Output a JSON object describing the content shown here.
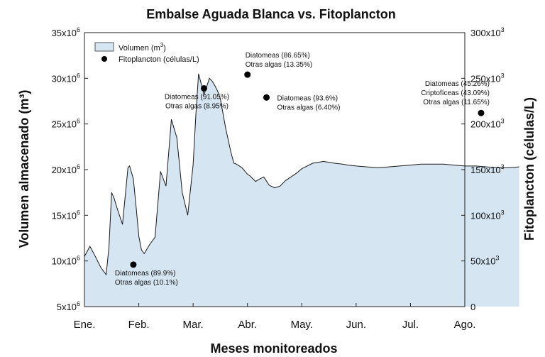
{
  "chart_data": {
    "type": "area",
    "title": "Embalse Aguada Blanca vs. Fitoplancton",
    "xlabel": "Meses monitoreados",
    "ylabel_left": "Volumen almacenado (m³)",
    "ylabel_right": "Fitoplancton (células/L)",
    "x_categories": [
      "Ene.",
      "Feb.",
      "Mar.",
      "Abr.",
      "May.",
      "Jun.",
      "Jul.",
      "Ago."
    ],
    "y_left": {
      "min": 5000000,
      "max": 35000000,
      "ticks": [
        5,
        10,
        15,
        20,
        25,
        30,
        35
      ],
      "tick_suffix": "x10",
      "tick_exp": "6"
    },
    "y_right": {
      "min": 0,
      "max": 300000,
      "ticks": [
        0,
        50,
        100,
        150,
        200,
        250,
        300
      ],
      "tick_suffix": "x10",
      "tick_exp": "3"
    },
    "legend": {
      "placement": "top-left",
      "volume_label": "Volumen (m",
      "volume_exp": "3",
      "volume_close": ")",
      "phyto_label": "Fitoplancton (células/L)"
    },
    "colors": {
      "area_fill": "#d5e5f2",
      "line": "#1a1a1a",
      "point": "#000000"
    },
    "volume_series": {
      "name": "Volumen (m3)",
      "x": [
        0,
        0.1,
        0.2,
        0.3,
        0.4,
        0.45,
        0.5,
        0.55,
        0.6,
        0.7,
        0.8,
        0.83,
        0.9,
        0.95,
        1.0,
        1.05,
        1.1,
        1.2,
        1.3,
        1.4,
        1.5,
        1.6,
        1.7,
        1.8,
        1.9,
        2.0,
        2.05,
        2.1,
        2.2,
        2.3,
        2.35,
        2.4,
        2.45,
        2.5,
        2.6,
        2.7,
        2.75,
        2.8,
        2.9,
        3.0,
        3.05,
        3.1,
        3.15,
        3.2,
        3.3,
        3.4,
        3.5,
        3.6,
        3.7,
        3.8,
        3.9,
        4.0,
        4.2,
        4.4,
        4.6,
        4.75,
        4.85,
        5.0,
        5.2,
        5.4,
        5.6,
        5.8,
        6.0,
        6.2,
        6.4,
        6.6,
        6.8,
        7.0,
        7.2,
        7.4,
        7.6,
        7.8,
        8.0
      ],
      "y": [
        10.5,
        11.6,
        10.5,
        9.3,
        8.5,
        11.5,
        17.5,
        16.8,
        15.8,
        14.0,
        20.2,
        20.4,
        19.0,
        16.0,
        12.7,
        11.2,
        10.8,
        11.8,
        12.6,
        19.8,
        18.2,
        25.5,
        23.5,
        17.5,
        15.0,
        20.5,
        26.0,
        30.5,
        28.2,
        30.0,
        29.7,
        29.2,
        28.6,
        27.8,
        24.5,
        21.8,
        20.7,
        20.6,
        20.2,
        19.5,
        19.3,
        19.0,
        18.7,
        18.9,
        19.2,
        18.3,
        18.0,
        18.2,
        18.8,
        19.2,
        19.6,
        20.1,
        20.7,
        20.9,
        20.7,
        20.6,
        20.5,
        20.4,
        20.3,
        20.2,
        20.3,
        20.4,
        20.5,
        20.6,
        20.6,
        20.6,
        20.5,
        20.4,
        20.4,
        20.3,
        20.2,
        20.2,
        20.3
      ],
      "y_unit": "x10^6 m3"
    },
    "phyto_points": [
      {
        "x": 0.9,
        "y": 46000,
        "lines": [
          "Diatomeas (89.9%)",
          "Otras algas (10.1%)"
        ],
        "label_anchor": "start",
        "label_dx": -26,
        "label_dy": 15
      },
      {
        "x": 2.2,
        "y": 239000,
        "lines": [
          "Diatomeas (91.05%)",
          "Otras algas (8.95%)"
        ],
        "label_anchor": "middle",
        "label_dx": -10,
        "label_dy": 15
      },
      {
        "x": 3.0,
        "y": 254000,
        "lines": [
          "Diatomeas (86.65%)",
          "Otras algas (13.35%)"
        ],
        "label_anchor": "start",
        "label_dx": -3,
        "label_dy": -24
      },
      {
        "x": 3.35,
        "y": 229000,
        "lines": [
          "Diatomeas (93.6%)",
          "Otras algas (6.40%)"
        ],
        "label_anchor": "start",
        "label_dx": 15,
        "label_dy": 4
      },
      {
        "x": 7.3,
        "y": 212000,
        "lines": [
          "Diatomeas (45.26%)",
          "Criptofíceas (43.09%)",
          "Otras algas (11.65%)"
        ],
        "label_anchor": "end",
        "label_dx": 12,
        "label_dy": -38
      }
    ]
  }
}
